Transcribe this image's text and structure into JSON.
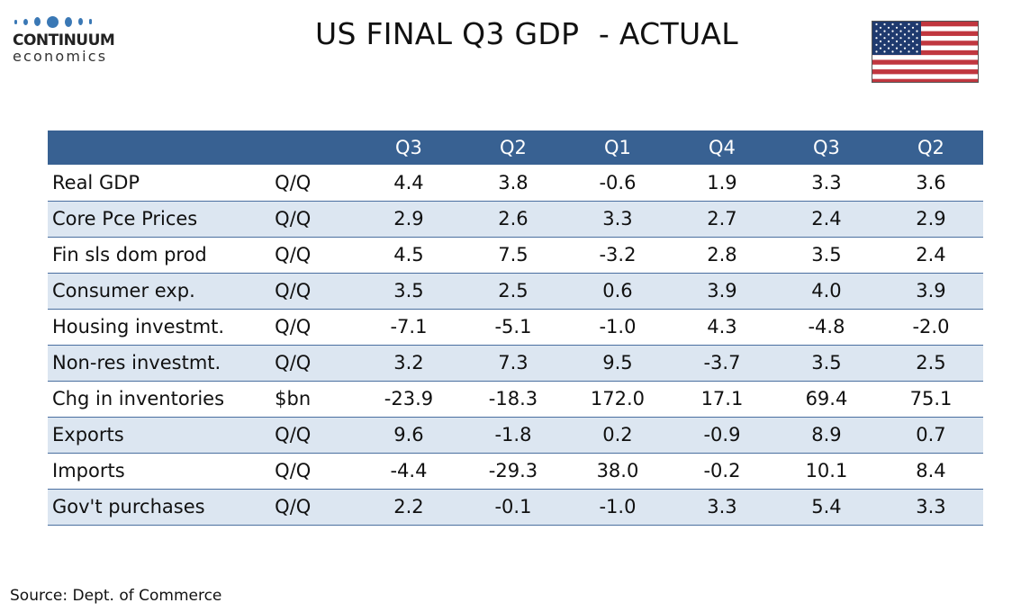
{
  "logo": {
    "name_line1": "CONTINUUM",
    "name_line2": "economics",
    "brand_color": "#3a78b5"
  },
  "title": "US FINAL Q3 GDP  - ACTUAL",
  "flag": {
    "icon": "us-flag-icon",
    "colors": {
      "blue": "#1f3a6e",
      "red": "#c0373f",
      "white": "#ffffff"
    }
  },
  "table": {
    "header_color": "#386192",
    "alt_row_color": "#dce6f1",
    "columns": [
      "",
      "",
      "Q3",
      "Q2",
      "Q1",
      "Q4",
      "Q3",
      "Q2"
    ],
    "rows": [
      {
        "label": "Real GDP",
        "unit": "Q/Q",
        "values": [
          "4.4",
          "3.8",
          "-0.6",
          "1.9",
          "3.3",
          "3.6"
        ]
      },
      {
        "label": "Core Pce  Prices",
        "unit": "Q/Q",
        "values": [
          "2.9",
          "2.6",
          "3.3",
          "2.7",
          "2.4",
          "2.9"
        ]
      },
      {
        "label": "Fin sls dom prod",
        "unit": "Q/Q",
        "values": [
          "4.5",
          "7.5",
          "-3.2",
          "2.8",
          "3.5",
          "2.4"
        ]
      },
      {
        "label": "Consumer exp.",
        "unit": "Q/Q",
        "values": [
          "3.5",
          "2.5",
          "0.6",
          "3.9",
          "4.0",
          "3.9"
        ]
      },
      {
        "label": "Housing investmt.",
        "unit": "Q/Q",
        "values": [
          "-7.1",
          "-5.1",
          "-1.0",
          "4.3",
          "-4.8",
          "-2.0"
        ]
      },
      {
        "label": "Non-res investmt.",
        "unit": "Q/Q",
        "values": [
          "3.2",
          "7.3",
          "9.5",
          "-3.7",
          "3.5",
          "2.5"
        ]
      },
      {
        "label": "Chg in inventories",
        "unit": "$bn",
        "values": [
          "-23.9",
          "-18.3",
          "172.0",
          "17.1",
          "69.4",
          "75.1"
        ]
      },
      {
        "label": "Exports",
        "unit": "Q/Q",
        "values": [
          "9.6",
          "-1.8",
          "0.2",
          "-0.9",
          "8.9",
          "0.7"
        ]
      },
      {
        "label": "Imports",
        "unit": "Q/Q",
        "values": [
          "-4.4",
          "-29.3",
          "38.0",
          "-0.2",
          "10.1",
          "8.4"
        ]
      },
      {
        "label": "Gov't purchases",
        "unit": "Q/Q",
        "values": [
          "2.2",
          "-0.1",
          "-1.0",
          "3.3",
          "5.4",
          "3.3"
        ]
      }
    ]
  },
  "source": "Source: Dept. of Commerce"
}
